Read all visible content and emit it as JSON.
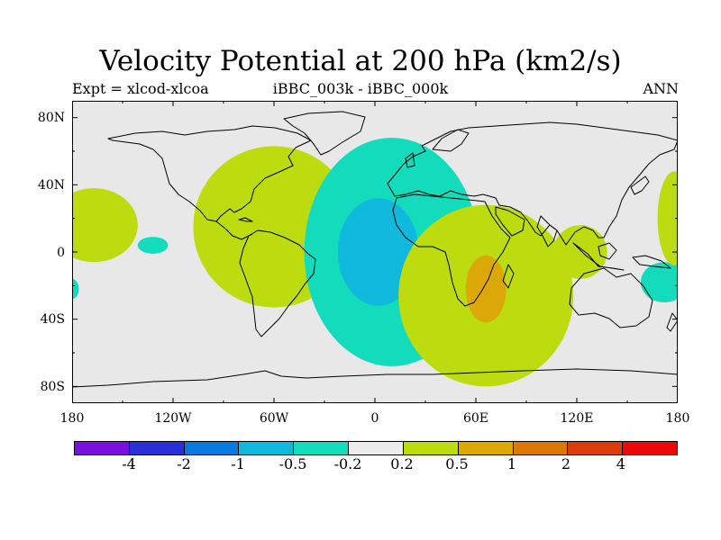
{
  "title": "Velocity Potential at 200 hPa (km2/s)",
  "subtitle_left": "Expt = xlcod-xlcoa",
  "subtitle_center": "iBBC_003k - iBBC_000k",
  "subtitle_right": "ANN",
  "y_axis_labels": [
    "80N",
    "40N",
    "0",
    "40S",
    "80S"
  ],
  "x_axis_labels": [
    "180",
    "120W",
    "60W",
    "0",
    "60E",
    "120E",
    "180"
  ],
  "colorbar": {
    "labels": [
      "-4",
      "-2",
      "-1",
      "-0.5",
      "-0.2",
      "0.2",
      "0.5",
      "1",
      "2",
      "4"
    ],
    "colors": [
      "#7a10e0",
      "#2a30d8",
      "#0a78dc",
      "#10b8dc",
      "#12dcbc",
      "#ececec",
      "#bcdc10",
      "#dca808",
      "#dc780a",
      "#dc3c0c",
      "#ec0808"
    ]
  },
  "map_colors": {
    "background": "#e8e8e8",
    "coast": "#000000",
    "light_positive": "#bcdc10",
    "strong_positive": "#dca808",
    "light_negative": "#12dcbc",
    "strong_negative": "#10b8dc"
  },
  "chart_data": {
    "type": "heatmap",
    "title": "Velocity Potential at 200 hPa (km2/s)",
    "projection": "cylindrical equidistant",
    "lon_range": [
      -180,
      180
    ],
    "lat_range": [
      -90,
      90
    ],
    "levels": [
      -4,
      -2,
      -1,
      -0.5,
      -0.2,
      0.2,
      0.5,
      1,
      2,
      4
    ],
    "anomalies": [
      {
        "name": "central-pacific-positive",
        "sign": "positive",
        "range": "0.2 to 0.5",
        "center": [
          -167,
          16
        ],
        "span": [
          26,
          22
        ]
      },
      {
        "name": "east-pacific-negative",
        "sign": "negative",
        "range": "-0.5 to -0.2",
        "center": [
          -132,
          4
        ],
        "span": [
          9,
          5
        ]
      },
      {
        "name": "south-america-atlantic-positive",
        "sign": "positive",
        "range": "0.2 to 0.5",
        "center": [
          -60,
          15
        ],
        "span": [
          48,
          48
        ]
      },
      {
        "name": "africa-south-atlantic-negative",
        "sign": "negative",
        "range": "-0.5 to -0.2",
        "center": [
          10,
          0
        ],
        "span": [
          52,
          68
        ]
      },
      {
        "name": "africa-core-negative",
        "sign": "negative",
        "range": "-1 to -0.5",
        "center": [
          2,
          0
        ],
        "span": [
          24,
          32
        ]
      },
      {
        "name": "indian-ocean-positive",
        "sign": "positive",
        "range": "0.2 to 0.5",
        "center": [
          66,
          -26
        ],
        "span": [
          52,
          54
        ]
      },
      {
        "name": "indian-ocean-core-positive",
        "sign": "positive",
        "range": "0.5 to 1",
        "center": [
          66,
          -22
        ],
        "span": [
          12,
          20
        ]
      },
      {
        "name": "maritime-continent-positive",
        "sign": "positive",
        "range": "0.2 to 0.5",
        "center": [
          122,
          0
        ],
        "span": [
          16,
          16
        ]
      },
      {
        "name": "western-pacific-negative",
        "sign": "negative",
        "range": "-0.5 to -0.2",
        "center": [
          172,
          -18
        ],
        "span": [
          14,
          12
        ]
      },
      {
        "name": "dateline-positive",
        "sign": "positive",
        "range": "0.2 to 0.5",
        "center": [
          178,
          20
        ],
        "span": [
          10,
          28
        ]
      },
      {
        "name": "west-edge-negative",
        "sign": "negative",
        "range": "-0.5 to -0.2",
        "center": [
          -180,
          -22
        ],
        "span": [
          4,
          6
        ]
      }
    ]
  }
}
